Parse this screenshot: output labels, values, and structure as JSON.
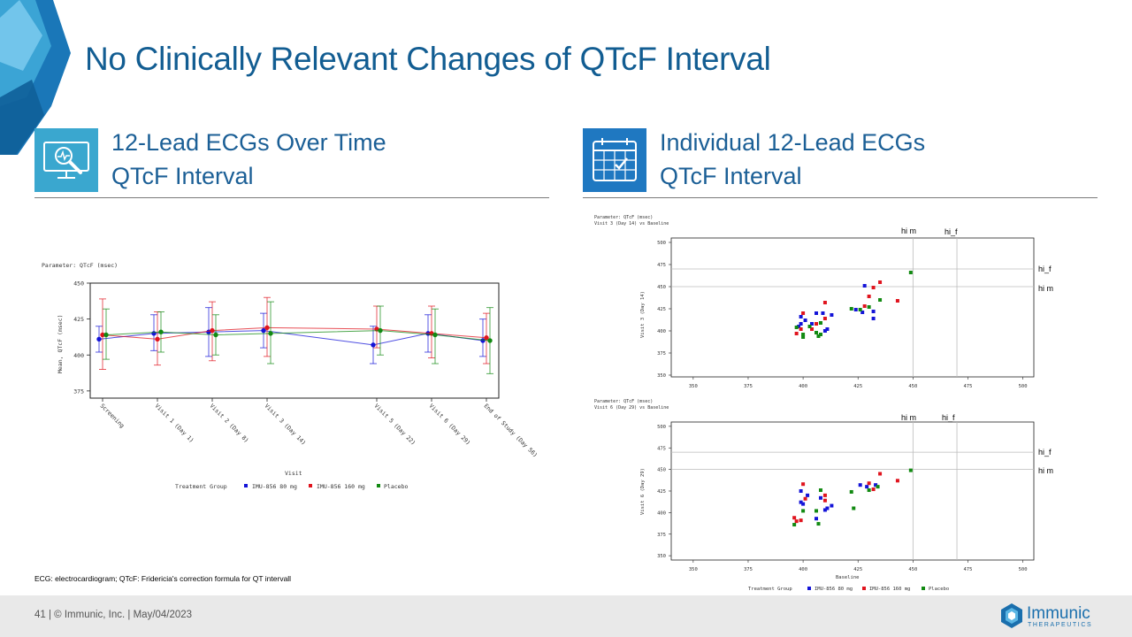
{
  "slide": {
    "title": "No Clinically Relevant Changes of QTcF Interval",
    "footnote": "ECG: electrocardiogram; QTcF: Fridericia's correction formula for QT intervall",
    "footer": "41   |  © Immunic, Inc.  | May/04/2023",
    "logo_name": "Immunic",
    "logo_sub": "THERAPEUTICS"
  },
  "left_section": {
    "title_line1": "12-Lead ECGs Over Time",
    "title_line2": "QTcF Interval",
    "icon": "ecg-magnifier-monitor-icon"
  },
  "right_section": {
    "title_line1": "Individual 12-Lead ECGs",
    "title_line2": "QTcF Interval",
    "icon": "calendar-check-icon"
  },
  "colors": {
    "title": "#125d92",
    "icon_bg_left": "#3aa7cf",
    "icon_bg_right": "#1f78c1",
    "series_80": "#1414d8",
    "series_160": "#e0141e",
    "series_placebo": "#128a12"
  },
  "legend": {
    "title": "Treatment Group",
    "s1": "IMU-856 80 mg",
    "s2": "IMU-856 160 mg",
    "s3": "Placebo"
  },
  "chart_data": [
    {
      "type": "line",
      "header": "Parameter:  QTcF (msec)",
      "title": "",
      "xlabel": "Visit",
      "ylabel": "Mean, QTcF (msec)",
      "ylim": [
        370,
        450
      ],
      "yticks": [
        375,
        400,
        425,
        450
      ],
      "categories": [
        "Screening",
        "Visit 1 (Day 1)",
        "Visit 2 (Day 8)",
        "Visit 3 (Day 14)",
        "Visit 5 (Day 22)",
        "Visit 6 (Day 29)",
        "End of Study (Day 56)"
      ],
      "category_index": [
        0,
        1,
        2,
        3,
        5,
        6,
        7
      ],
      "series": [
        {
          "name": "IMU-856 80 mg",
          "values": [
            411,
            415,
            416,
            417,
            407,
            415,
            410
          ],
          "lower": [
            402,
            403,
            399,
            405,
            394,
            402,
            399
          ],
          "upper": [
            420,
            428,
            433,
            429,
            420,
            428,
            425
          ]
        },
        {
          "name": "IMU-856 160 mg",
          "values": [
            414,
            411,
            417,
            419,
            418,
            415,
            412
          ],
          "lower": [
            390,
            393,
            396,
            399,
            405,
            398,
            394
          ],
          "upper": [
            439,
            430,
            437,
            440,
            434,
            434,
            429
          ]
        },
        {
          "name": "Placebo",
          "values": [
            414,
            416,
            414,
            415,
            417,
            414,
            410
          ],
          "lower": [
            397,
            402,
            400,
            394,
            400,
            394,
            387
          ],
          "upper": [
            432,
            430,
            428,
            437,
            434,
            432,
            433
          ]
        }
      ]
    },
    {
      "type": "scatter",
      "header_line1": "Parameter:  QTcF (msec)",
      "header_line2": "Visit 3 (Day 14) vs Baseline",
      "xlabel": "",
      "ylabel": "Visit 3 (Day 14)",
      "xlim": [
        340,
        505
      ],
      "ylim": [
        348,
        505
      ],
      "xticks": [
        350,
        375,
        400,
        425,
        450,
        475,
        500
      ],
      "yticks": [
        350,
        375,
        400,
        425,
        450,
        475,
        500
      ],
      "ref_lines": {
        "x": [
          450,
          470
        ],
        "y": [
          450,
          470
        ]
      },
      "annotations": {
        "top_left": "hi m",
        "top_right": "hi_f",
        "right_upper": "hi_f",
        "right_lower": "hi m"
      },
      "series": [
        {
          "name": "IMU-856 80 mg",
          "points": [
            [
              399,
              416
            ],
            [
              401,
              412
            ],
            [
              398,
              405
            ],
            [
              404,
              408
            ],
            [
              406,
              420
            ],
            [
              409,
              420
            ],
            [
              410,
              400
            ],
            [
              411,
              402
            ],
            [
              413,
              418
            ],
            [
              399,
              408
            ],
            [
              424,
              424
            ],
            [
              427,
              421
            ],
            [
              428,
              451
            ],
            [
              432,
              414
            ],
            [
              432,
              422
            ]
          ]
        },
        {
          "name": "IMU-856 160 mg",
          "points": [
            [
              397,
              397
            ],
            [
              399,
              402
            ],
            [
              400,
              420
            ],
            [
              404,
              402
            ],
            [
              406,
              408
            ],
            [
              410,
              414
            ],
            [
              410,
              432
            ],
            [
              428,
              428
            ],
            [
              430,
              439
            ],
            [
              432,
              449
            ],
            [
              435,
              455
            ],
            [
              443,
              434
            ]
          ]
        },
        {
          "name": "Placebo",
          "points": [
            [
              397,
              404
            ],
            [
              400,
              396
            ],
            [
              400,
              393
            ],
            [
              403,
              405
            ],
            [
              406,
              398
            ],
            [
              407,
              394
            ],
            [
              408,
              409
            ],
            [
              408,
              396
            ],
            [
              422,
              425
            ],
            [
              426,
              424
            ],
            [
              430,
              427
            ],
            [
              435,
              435
            ],
            [
              449,
              466
            ]
          ]
        }
      ]
    },
    {
      "type": "scatter",
      "header_line1": "Parameter:  QTcF (msec)",
      "header_line2": "Visit 6 (Day 29) vs Baseline",
      "xlabel": "Baseline",
      "ylabel": "Visit 6 (Day 29)",
      "xlim": [
        340,
        505
      ],
      "ylim": [
        345,
        505
      ],
      "xticks": [
        350,
        375,
        400,
        425,
        450,
        475,
        500
      ],
      "yticks": [
        350,
        375,
        400,
        425,
        450,
        475,
        500
      ],
      "ref_lines": {
        "x": [
          450,
          470
        ],
        "y": [
          450,
          470
        ]
      },
      "annotations": {
        "top_left": "hi m",
        "top_right": "hi_f",
        "right_upper": "hi_f",
        "right_lower": "hi m"
      },
      "series": [
        {
          "name": "IMU-856 80 mg",
          "points": [
            [
              399,
              425
            ],
            [
              399,
              412
            ],
            [
              400,
              410
            ],
            [
              402,
              420
            ],
            [
              406,
              393
            ],
            [
              408,
              417
            ],
            [
              410,
              403
            ],
            [
              411,
              405
            ],
            [
              413,
              408
            ],
            [
              426,
              432
            ],
            [
              429,
              430
            ],
            [
              433,
              432
            ]
          ]
        },
        {
          "name": "IMU-856 160 mg",
          "points": [
            [
              396,
              394
            ],
            [
              397,
              390
            ],
            [
              399,
              391
            ],
            [
              400,
              433
            ],
            [
              401,
              416
            ],
            [
              410,
              420
            ],
            [
              410,
              414
            ],
            [
              430,
              434
            ],
            [
              432,
              427
            ],
            [
              435,
              445
            ],
            [
              443,
              437
            ]
          ]
        },
        {
          "name": "Placebo",
          "points": [
            [
              396,
              386
            ],
            [
              400,
              402
            ],
            [
              406,
              402
            ],
            [
              407,
              387
            ],
            [
              408,
              426
            ],
            [
              422,
              424
            ],
            [
              423,
              405
            ],
            [
              430,
              426
            ],
            [
              434,
              430
            ],
            [
              449,
              449
            ]
          ]
        }
      ]
    }
  ]
}
